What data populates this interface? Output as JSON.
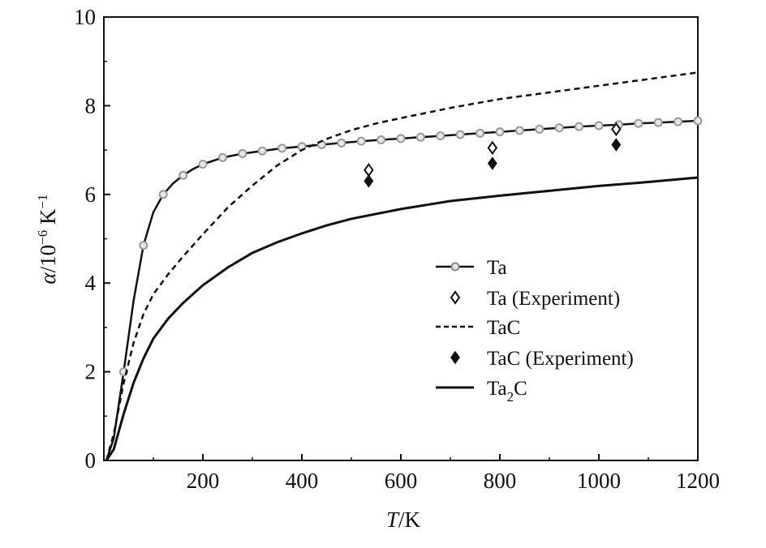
{
  "chart_data": {
    "type": "line",
    "xlabel": {
      "italic": "T",
      "rest": "/K"
    },
    "ylabel": {
      "italic": "α",
      "rest": "/10",
      "sup1": "−6",
      "mid": " K",
      "sup2": "−1"
    },
    "xlim": [
      0,
      1200
    ],
    "ylim": [
      0,
      10
    ],
    "xticks": [
      200,
      400,
      600,
      800,
      1000,
      1200
    ],
    "yticks": [
      0,
      2,
      4,
      6,
      8,
      10
    ],
    "grid": false,
    "legend_position": "center-right",
    "series": [
      {
        "name": "Ta",
        "style": "solid-with-open-circles",
        "color": "#111111",
        "marker_color": "#999999",
        "x": [
          5,
          20,
          40,
          60,
          80,
          100,
          120,
          140,
          160,
          180,
          200,
          240,
          280,
          320,
          360,
          400,
          440,
          480,
          520,
          560,
          600,
          640,
          680,
          720,
          760,
          800,
          840,
          880,
          920,
          960,
          1000,
          1040,
          1080,
          1120,
          1160,
          1200
        ],
        "y": [
          0.0,
          0.5,
          2.0,
          3.6,
          4.85,
          5.6,
          6.0,
          6.25,
          6.43,
          6.57,
          6.68,
          6.83,
          6.92,
          6.98,
          7.04,
          7.08,
          7.12,
          7.16,
          7.2,
          7.23,
          7.26,
          7.29,
          7.32,
          7.35,
          7.38,
          7.41,
          7.44,
          7.47,
          7.5,
          7.53,
          7.55,
          7.57,
          7.6,
          7.62,
          7.64,
          7.66
        ],
        "marker_x": [
          40,
          80,
          120,
          160,
          200,
          240,
          280,
          320,
          360,
          400,
          440,
          480,
          520,
          560,
          600,
          640,
          680,
          720,
          760,
          800,
          840,
          880,
          920,
          960,
          1000,
          1040,
          1080,
          1120,
          1160,
          1200
        ]
      },
      {
        "name": "Ta (Experiment)",
        "style": "open-diamond",
        "color": "#111111",
        "x": [
          535,
          785,
          1035
        ],
        "y": [
          6.55,
          7.05,
          7.47
        ]
      },
      {
        "name": "TaC",
        "style": "dashed",
        "color": "#111111",
        "x": [
          5,
          20,
          40,
          60,
          80,
          100,
          130,
          160,
          200,
          250,
          300,
          350,
          400,
          450,
          500,
          550,
          600,
          700,
          800,
          900,
          1000,
          1100,
          1200
        ],
        "y": [
          0.0,
          0.6,
          1.75,
          2.65,
          3.3,
          3.75,
          4.2,
          4.6,
          5.1,
          5.7,
          6.2,
          6.65,
          7.0,
          7.25,
          7.45,
          7.6,
          7.72,
          7.95,
          8.15,
          8.3,
          8.45,
          8.6,
          8.75
        ]
      },
      {
        "name": "TaC (Experiment)",
        "style": "filled-diamond",
        "color": "#111111",
        "x": [
          535,
          785,
          1035
        ],
        "y": [
          6.3,
          6.7,
          7.12
        ]
      },
      {
        "name": "Ta2C",
        "name_base": "Ta",
        "name_sub": "2",
        "name_tail": "C",
        "style": "solid-thick",
        "color": "#111111",
        "x": [
          5,
          20,
          40,
          60,
          80,
          100,
          130,
          160,
          200,
          250,
          300,
          350,
          400,
          450,
          500,
          600,
          700,
          800,
          900,
          1000,
          1100,
          1200
        ],
        "y": [
          0.0,
          0.25,
          1.05,
          1.75,
          2.3,
          2.75,
          3.2,
          3.55,
          3.95,
          4.35,
          4.68,
          4.92,
          5.12,
          5.3,
          5.45,
          5.67,
          5.85,
          5.97,
          6.08,
          6.19,
          6.28,
          6.38
        ]
      }
    ]
  }
}
